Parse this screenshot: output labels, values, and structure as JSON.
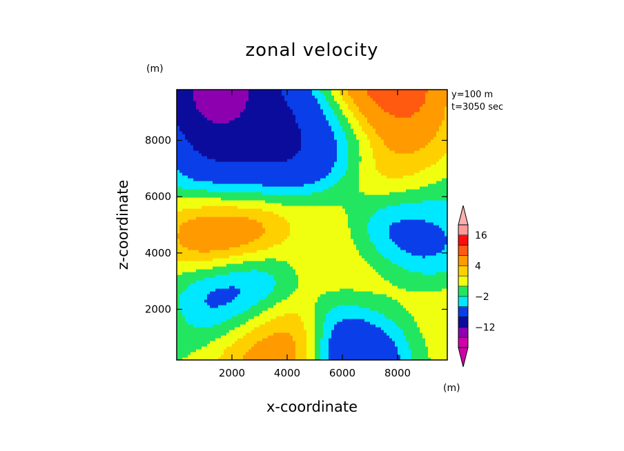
{
  "chart_data": {
    "type": "heatmap",
    "title": "zonal velocity",
    "xlabel": "x-coordinate",
    "ylabel": "z-coordinate",
    "x_unit": "(m)",
    "y_unit": "(m)",
    "xlim": [
      0,
      9800
    ],
    "ylim": [
      200,
      9800
    ],
    "x_ticks": [
      2000,
      4000,
      6000,
      8000
    ],
    "y_ticks": [
      2000,
      4000,
      6000,
      8000
    ],
    "x_tick_labels": [
      "2000",
      "4000",
      "6000",
      "8000"
    ],
    "y_tick_labels": [
      "2000",
      "4000",
      "6000",
      "8000"
    ],
    "annotations": [
      "y=100 m",
      "t=3050 sec"
    ],
    "colorbar": {
      "levels": [
        -20,
        -16,
        -12,
        -8,
        -4,
        -2,
        0,
        2,
        4,
        8,
        12,
        16,
        20
      ],
      "labels": [
        {
          "value": 16,
          "text": "16"
        },
        {
          "value": 4,
          "text": "4"
        },
        {
          "value": -2,
          "text": "−2"
        },
        {
          "value": -12,
          "text": "−12"
        }
      ],
      "colors": [
        "#d000a8",
        "#8c00b0",
        "#0c0c9c",
        "#0a3ee8",
        "#00e8ff",
        "#22e660",
        "#f0ff10",
        "#ffd000",
        "#ff9a00",
        "#ff5a10",
        "#ff0c0c",
        "#ff9a9a"
      ],
      "under_color": "#d000a8",
      "over_color": "#ffb0b0"
    },
    "features": [
      {
        "x": 1600,
        "z": 9650,
        "value": -18
      },
      {
        "x": 7300,
        "z": 9650,
        "value": 18
      },
      {
        "x": 4300,
        "z": 8200,
        "value": -12
      },
      {
        "x": 2000,
        "z": 6600,
        "value": -14
      },
      {
        "x": 6000,
        "z": 8500,
        "value": -6
      },
      {
        "x": 2000,
        "z": 5000,
        "value": 17
      },
      {
        "x": 8200,
        "z": 7000,
        "value": 6
      },
      {
        "x": 8300,
        "z": 4500,
        "value": -11
      },
      {
        "x": 2400,
        "z": 2800,
        "value": -11
      },
      {
        "x": 3400,
        "z": 1000,
        "value": 9
      },
      {
        "x": 6800,
        "z": 1000,
        "value": -12
      },
      {
        "x": 7400,
        "z": 2800,
        "value": 6
      },
      {
        "x": 5300,
        "z": 4400,
        "value": 2
      },
      {
        "x": 9600,
        "z": 5400,
        "value": -3
      },
      {
        "x": 9600,
        "z": 1500,
        "value": 2
      }
    ]
  }
}
